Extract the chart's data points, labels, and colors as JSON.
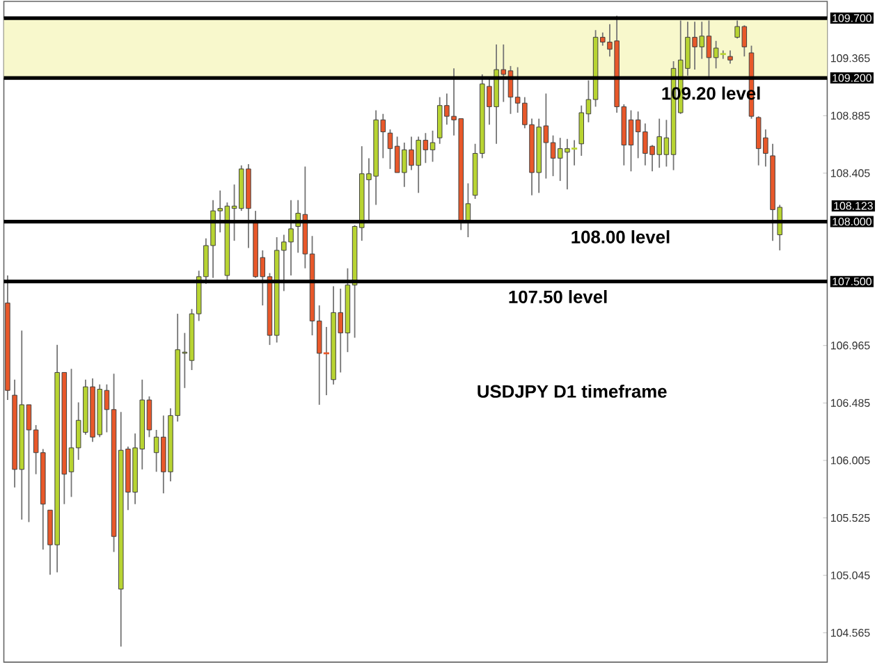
{
  "chart_data": {
    "type": "candlestick",
    "categories": [
      null,
      null,
      null,
      null,
      null,
      null,
      null,
      null,
      null,
      null,
      null,
      null,
      null,
      null,
      null,
      null,
      null,
      null,
      null,
      null,
      null,
      null,
      null,
      null,
      null,
      null,
      null,
      null,
      null,
      null,
      null,
      null,
      null,
      null,
      null,
      null,
      null,
      null,
      null,
      null,
      null,
      null,
      null,
      null,
      null,
      null,
      null,
      null,
      null,
      null,
      null,
      null,
      null,
      null,
      null,
      null,
      null,
      null,
      null,
      null,
      null,
      null,
      null,
      null,
      null,
      null,
      null,
      null,
      null,
      null,
      null,
      null,
      null,
      null,
      null,
      null,
      null,
      null,
      null,
      null,
      null,
      null,
      null,
      null,
      null,
      null,
      null,
      null,
      null,
      null,
      null,
      null,
      null,
      null,
      null,
      null,
      null,
      null,
      null,
      null,
      null,
      null,
      null,
      null,
      null,
      null,
      null,
      null,
      null,
      null
    ],
    "ohlc": [
      [
        107.32,
        107.55,
        106.51,
        106.59
      ],
      [
        106.55,
        106.68,
        105.78,
        105.93
      ],
      [
        105.93,
        107.09,
        105.51,
        106.47
      ],
      [
        106.47,
        106.47,
        105.49,
        106.26
      ],
      [
        106.26,
        106.3,
        105.89,
        106.07
      ],
      [
        106.07,
        106.1,
        105.26,
        105.64
      ],
      [
        105.59,
        105.59,
        105.05,
        105.3
      ],
      [
        105.3,
        106.97,
        105.07,
        106.74
      ],
      [
        106.74,
        106.74,
        105.64,
        105.89
      ],
      [
        105.91,
        106.77,
        105.7,
        106.11
      ],
      [
        106.11,
        106.49,
        106.01,
        106.34
      ],
      [
        106.24,
        106.68,
        106.22,
        106.62
      ],
      [
        106.62,
        106.69,
        106.16,
        106.2
      ],
      [
        106.22,
        106.64,
        106.2,
        106.6
      ],
      [
        106.59,
        106.64,
        106.24,
        106.43
      ],
      [
        106.43,
        106.73,
        105.24,
        105.37
      ],
      [
        104.93,
        106.41,
        104.45,
        106.09
      ],
      [
        106.1,
        106.12,
        105.59,
        105.74
      ],
      [
        105.74,
        106.23,
        105.64,
        106.11
      ],
      [
        106.1,
        106.68,
        105.93,
        106.51
      ],
      [
        106.51,
        106.54,
        106.2,
        106.26
      ],
      [
        106.07,
        106.26,
        105.91,
        106.2
      ],
      [
        106.2,
        106.38,
        105.73,
        105.91
      ],
      [
        105.91,
        106.44,
        105.83,
        106.38
      ],
      [
        106.38,
        107.23,
        106.33,
        106.93
      ],
      [
        106.9,
        107.07,
        106.61,
        106.91
      ],
      [
        106.84,
        107.27,
        106.76,
        107.23
      ],
      [
        107.23,
        107.59,
        107.17,
        107.54
      ],
      [
        107.54,
        107.86,
        107.48,
        107.8
      ],
      [
        107.8,
        108.18,
        107.53,
        108.09
      ],
      [
        108.09,
        108.26,
        107.91,
        108.11
      ],
      [
        107.55,
        108.16,
        107.51,
        108.13
      ],
      [
        108.11,
        108.31,
        107.84,
        108.13
      ],
      [
        108.11,
        108.47,
        108.09,
        108.44
      ],
      [
        108.44,
        108.48,
        107.78,
        108.11
      ],
      [
        107.99,
        108.09,
        107.53,
        107.54
      ],
      [
        107.7,
        107.76,
        107.3,
        107.54
      ],
      [
        107.54,
        107.57,
        106.97,
        107.05
      ],
      [
        107.05,
        107.87,
        106.99,
        107.76
      ],
      [
        107.76,
        107.89,
        107.42,
        107.83
      ],
      [
        107.83,
        108.18,
        107.55,
        107.94
      ],
      [
        107.96,
        108.18,
        107.74,
        108.07
      ],
      [
        108.06,
        108.46,
        107.61,
        107.73
      ],
      [
        107.73,
        107.88,
        107.05,
        107.17
      ],
      [
        107.17,
        107.3,
        106.47,
        106.9
      ],
      [
        106.9,
        107.12,
        106.55,
        106.9
      ],
      [
        106.68,
        107.46,
        106.64,
        107.24
      ],
      [
        107.24,
        107.44,
        106.74,
        107.07
      ],
      [
        107.07,
        107.61,
        106.91,
        107.47
      ],
      [
        107.47,
        107.97,
        107.03,
        107.96
      ],
      [
        107.95,
        108.63,
        107.84,
        108.4
      ],
      [
        108.35,
        108.53,
        108.01,
        108.4
      ],
      [
        108.38,
        108.93,
        108.14,
        108.85
      ],
      [
        108.85,
        108.9,
        108.53,
        108.75
      ],
      [
        108.74,
        108.77,
        108.44,
        108.61
      ],
      [
        108.63,
        108.71,
        108.41,
        108.41
      ],
      [
        108.41,
        108.66,
        108.29,
        108.6
      ],
      [
        108.6,
        108.71,
        108.43,
        108.47
      ],
      [
        108.47,
        108.71,
        108.24,
        108.68
      ],
      [
        108.68,
        108.74,
        108.49,
        108.6
      ],
      [
        108.6,
        108.76,
        108.5,
        108.66
      ],
      [
        108.7,
        109.04,
        108.65,
        108.97
      ],
      [
        108.97,
        109.07,
        108.81,
        108.88
      ],
      [
        108.88,
        109.28,
        108.72,
        108.85
      ],
      [
        108.86,
        108.86,
        107.93,
        108.01
      ],
      [
        108.01,
        108.32,
        107.87,
        108.15
      ],
      [
        108.22,
        108.65,
        108.19,
        108.57
      ],
      [
        108.57,
        109.23,
        108.53,
        109.15
      ],
      [
        109.13,
        109.19,
        108.81,
        108.96
      ],
      [
        108.96,
        109.48,
        108.65,
        109.27
      ],
      [
        109.27,
        109.48,
        109.0,
        109.23
      ],
      [
        109.26,
        109.3,
        108.9,
        109.04
      ],
      [
        109.04,
        109.29,
        108.91,
        108.99
      ],
      [
        108.99,
        109.04,
        108.78,
        108.81
      ],
      [
        108.81,
        108.86,
        108.22,
        108.41
      ],
      [
        108.41,
        108.86,
        108.24,
        108.79
      ],
      [
        108.8,
        109.07,
        108.36,
        108.66
      ],
      [
        108.66,
        108.72,
        108.38,
        108.53
      ],
      [
        108.53,
        108.7,
        108.34,
        108.61
      ],
      [
        108.58,
        108.69,
        108.27,
        108.61
      ],
      [
        108.61,
        108.68,
        108.47,
        108.61
      ],
      [
        108.65,
        108.97,
        108.55,
        108.91
      ],
      [
        108.9,
        109.18,
        108.83,
        109.02
      ],
      [
        109.02,
        109.6,
        108.96,
        109.54
      ],
      [
        109.54,
        109.58,
        109.47,
        109.5
      ],
      [
        109.5,
        109.65,
        109.38,
        109.44
      ],
      [
        109.51,
        109.72,
        108.91,
        108.96
      ],
      [
        108.96,
        108.98,
        108.47,
        108.64
      ],
      [
        108.85,
        108.93,
        108.42,
        108.64
      ],
      [
        108.85,
        108.92,
        108.53,
        108.75
      ],
      [
        108.75,
        108.82,
        108.47,
        108.57
      ],
      [
        108.63,
        108.64,
        108.42,
        108.56
      ],
      [
        108.56,
        108.86,
        108.45,
        108.71
      ],
      [
        108.56,
        108.85,
        108.46,
        108.7
      ],
      [
        108.56,
        109.34,
        108.43,
        109.28
      ],
      [
        108.91,
        109.68,
        108.9,
        109.35
      ],
      [
        109.28,
        109.67,
        109.22,
        109.54
      ],
      [
        109.54,
        109.67,
        109.27,
        109.46
      ],
      [
        109.46,
        109.67,
        109.36,
        109.55
      ],
      [
        109.55,
        109.68,
        109.2,
        109.37
      ],
      [
        109.37,
        109.51,
        109.28,
        109.45
      ],
      [
        109.4,
        109.43,
        109.36,
        109.4
      ],
      [
        109.38,
        109.43,
        109.32,
        109.35
      ],
      [
        109.54,
        109.68,
        109.53,
        109.63
      ],
      [
        109.63,
        109.64,
        109.38,
        109.46
      ],
      [
        109.41,
        109.47,
        108.86,
        108.88
      ],
      [
        108.87,
        108.88,
        108.47,
        108.61
      ],
      [
        108.7,
        108.77,
        108.46,
        108.57
      ],
      [
        108.55,
        108.65,
        107.84,
        108.1
      ],
      [
        107.89,
        108.14,
        107.76,
        108.12
      ]
    ],
    "colors": [
      "#e8582a",
      "#e8582a",
      "#b8d432",
      "#e8582a",
      "#e8582a",
      "#e8582a",
      "#e8582a",
      "#b8d432",
      "#e8582a",
      "#b8d432",
      "#b8d432",
      "#b8d432",
      "#e8582a",
      "#b8d432",
      "#e8582a",
      "#e8582a",
      "#b8d432",
      "#e8582a",
      "#b8d432",
      "#b8d432",
      "#e8582a",
      "#b8d432",
      "#e8582a",
      "#b8d432",
      "#b8d432",
      "#b8d432",
      "#b8d432",
      "#b8d432",
      "#b8d432",
      "#b8d432",
      "#b8d432",
      "#b8d432",
      "#b8d432",
      "#b8d432",
      "#e8582a",
      "#e8582a",
      "#e8582a",
      "#e8582a",
      "#b8d432",
      "#b8d432",
      "#b8d432",
      "#b8d432",
      "#e8582a",
      "#e8582a",
      "#e8582a",
      "#e8582a",
      "#b8d432",
      "#e8582a",
      "#b8d432",
      "#b8d432",
      "#b8d432",
      "#b8d432",
      "#b8d432",
      "#e8582a",
      "#e8582a",
      "#e8582a",
      "#b8d432",
      "#e8582a",
      "#b8d432",
      "#e8582a",
      "#b8d432",
      "#b8d432",
      "#e8582a",
      "#e8582a",
      "#e8582a",
      "#b8d432",
      "#b8d432",
      "#b8d432",
      "#e8582a",
      "#b8d432",
      "#e8582a",
      "#e8582a",
      "#e8582a",
      "#e8582a",
      "#e8582a",
      "#b8d432",
      "#e8582a",
      "#e8582a",
      "#b8d432",
      "#b8d432",
      "#b8d432",
      "#b8d432",
      "#b8d432",
      "#b8d432",
      "#e8582a",
      "#e8582a",
      "#e8582a",
      "#e8582a",
      "#e8582a",
      "#e8582a",
      "#e8582a",
      "#e8582a",
      "#b8d432",
      "#b8d432",
      "#b8d432",
      "#b8d432",
      "#b8d432",
      "#e8582a",
      "#b8d432",
      "#e8582a",
      "#b8d432",
      "#b8d432",
      "#e8582a",
      "#b8d432",
      "#e8582a",
      "#e8582a",
      "#e8582a",
      "#e8582a",
      "#e8582a",
      "#b8d432"
    ],
    "ylim": [
      104.32,
      109.84
    ],
    "yticks": [
      109.365,
      108.885,
      108.405,
      106.965,
      106.485,
      106.005,
      105.525,
      105.045,
      104.565,
      {
        "value": 109.7,
        "label": "109.700"
      },
      {
        "value": 109.2,
        "label": "109.200"
      },
      {
        "value": 108.0,
        "label": "108.000"
      },
      {
        "value": 107.5,
        "label": "107.500"
      }
    ],
    "tick_labels": "y",
    "ref_lines": [
      {
        "axis": "y",
        "value": 109.7,
        "label": null,
        "color": "#000000"
      },
      {
        "axis": "y",
        "value": 109.2,
        "label": "109.20 level",
        "color": "#000000"
      },
      {
        "axis": "y",
        "value": 108.0,
        "label": "108.00 level",
        "color": "#000000"
      },
      {
        "axis": "y",
        "value": 107.5,
        "label": "107.50 level",
        "color": "#000000"
      }
    ],
    "bands": [
      {
        "axis": "y",
        "from": 109.2,
        "to": 109.7,
        "color": "#f8f8cc"
      }
    ],
    "annotations": [
      "USDJPY D1 timeframe",
      "108.123"
    ]
  }
}
